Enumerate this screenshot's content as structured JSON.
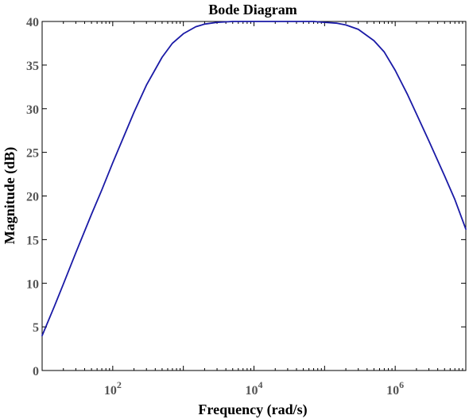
{
  "chart_data": {
    "type": "line",
    "title": "Bode Diagram",
    "xlabel": "Frequency  (rad/s)",
    "ylabel": "Magnitude (dB)",
    "x_scale": "log",
    "xlim": [
      10,
      10000000
    ],
    "ylim": [
      0,
      40
    ],
    "grid": false,
    "x_ticks": [
      {
        "value": 100,
        "base": "10",
        "exp": "2"
      },
      {
        "value": 10000,
        "base": "10",
        "exp": "4"
      },
      {
        "value": 1000000,
        "base": "10",
        "exp": "6"
      }
    ],
    "y_ticks": [
      0,
      5,
      10,
      15,
      20,
      25,
      30,
      35,
      40
    ],
    "series": [
      {
        "color": "#1a1aa6",
        "x": [
          10,
          15,
          20,
          30,
          50,
          70,
          100,
          150,
          200,
          300,
          500,
          700,
          1000,
          1500,
          2000,
          3000,
          5000,
          10000,
          30000,
          70000,
          100000,
          150000,
          200000,
          300000,
          500000,
          700000,
          1000000,
          1500000,
          2000000,
          3000000,
          5000000,
          7000000,
          10000000
        ],
        "y": [
          4.0,
          7.4,
          9.9,
          13.5,
          17.9,
          20.7,
          23.8,
          27.2,
          29.6,
          32.7,
          35.9,
          37.5,
          38.6,
          39.4,
          39.7,
          39.9,
          40.0,
          40.0,
          40.0,
          40.0,
          39.9,
          39.8,
          39.6,
          39.1,
          37.8,
          36.5,
          34.4,
          31.6,
          29.4,
          26.3,
          22.3,
          19.6,
          16.2
        ]
      }
    ]
  }
}
